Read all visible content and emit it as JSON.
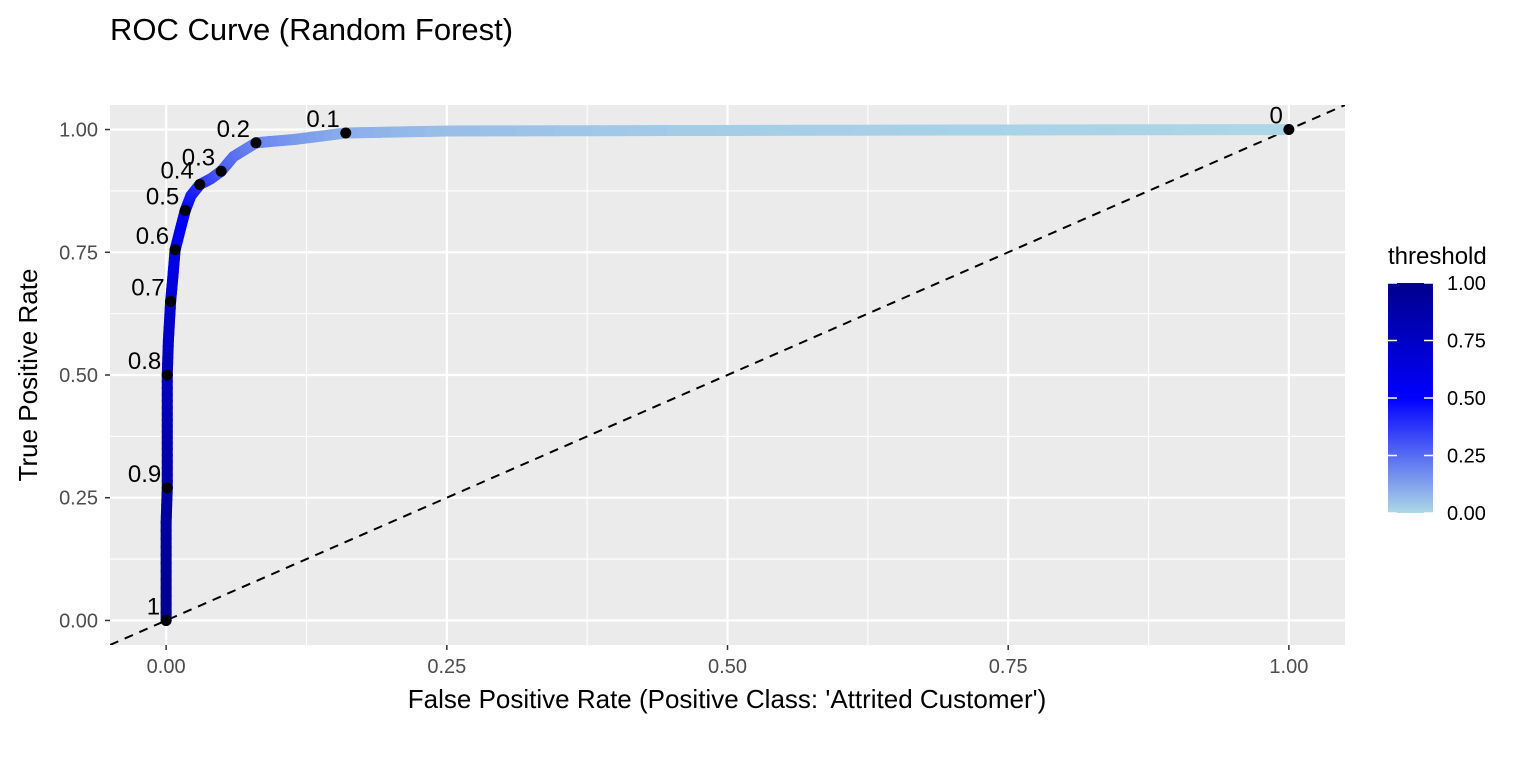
{
  "chart_data": {
    "type": "line",
    "title": "ROC Curve (Random Forest)",
    "xlabel": "False Positive Rate (Positive Class: 'Attrited Customer')",
    "ylabel": "True Positive Rate",
    "xlim": [
      -0.05,
      1.05
    ],
    "ylim": [
      -0.05,
      1.05
    ],
    "x_ticks": [
      0,
      0.25,
      0.5,
      0.75,
      1
    ],
    "x_tick_labels": [
      "0.00",
      "0.25",
      "0.50",
      "0.75",
      "1.00"
    ],
    "y_ticks": [
      0,
      0.25,
      0.5,
      0.75,
      1
    ],
    "y_tick_labels": [
      "0.00",
      "0.25",
      "0.50",
      "0.75",
      "1.00"
    ],
    "grid": true,
    "series": [
      {
        "name": "ROC",
        "color_by": "threshold",
        "points": [
          {
            "x": 0.0,
            "y": 0.0,
            "threshold": 1.0
          },
          {
            "x": 0.0,
            "y": 0.1,
            "threshold": 0.97
          },
          {
            "x": 0.0,
            "y": 0.2,
            "threshold": 0.93
          },
          {
            "x": 0.001,
            "y": 0.27,
            "threshold": 0.9
          },
          {
            "x": 0.001,
            "y": 0.35,
            "threshold": 0.87
          },
          {
            "x": 0.001,
            "y": 0.42,
            "threshold": 0.84
          },
          {
            "x": 0.001,
            "y": 0.5,
            "threshold": 0.8
          },
          {
            "x": 0.002,
            "y": 0.57,
            "threshold": 0.76
          },
          {
            "x": 0.004,
            "y": 0.65,
            "threshold": 0.7
          },
          {
            "x": 0.006,
            "y": 0.7,
            "threshold": 0.65
          },
          {
            "x": 0.008,
            "y": 0.755,
            "threshold": 0.6
          },
          {
            "x": 0.013,
            "y": 0.8,
            "threshold": 0.55
          },
          {
            "x": 0.017,
            "y": 0.835,
            "threshold": 0.5
          },
          {
            "x": 0.022,
            "y": 0.865,
            "threshold": 0.45
          },
          {
            "x": 0.03,
            "y": 0.888,
            "threshold": 0.4
          },
          {
            "x": 0.04,
            "y": 0.9,
            "threshold": 0.35
          },
          {
            "x": 0.049,
            "y": 0.915,
            "threshold": 0.3
          },
          {
            "x": 0.06,
            "y": 0.945,
            "threshold": 0.25
          },
          {
            "x": 0.08,
            "y": 0.973,
            "threshold": 0.2
          },
          {
            "x": 0.115,
            "y": 0.98,
            "threshold": 0.15
          },
          {
            "x": 0.16,
            "y": 0.993,
            "threshold": 0.1
          },
          {
            "x": 0.25,
            "y": 0.997,
            "threshold": 0.06
          },
          {
            "x": 0.45,
            "y": 0.998,
            "threshold": 0.03
          },
          {
            "x": 0.7,
            "y": 0.999,
            "threshold": 0.015
          },
          {
            "x": 1.0,
            "y": 1.0,
            "threshold": 0.0
          }
        ]
      }
    ],
    "threshold_points": [
      {
        "label": "1",
        "x": 0.0,
        "y": 0.0
      },
      {
        "label": "0.9",
        "x": 0.001,
        "y": 0.27
      },
      {
        "label": "0.8",
        "x": 0.001,
        "y": 0.5
      },
      {
        "label": "0.7",
        "x": 0.004,
        "y": 0.65
      },
      {
        "label": "0.6",
        "x": 0.008,
        "y": 0.755
      },
      {
        "label": "0.5",
        "x": 0.017,
        "y": 0.835
      },
      {
        "label": "0.4",
        "x": 0.03,
        "y": 0.888
      },
      {
        "label": "0.3",
        "x": 0.049,
        "y": 0.915
      },
      {
        "label": "0.2",
        "x": 0.08,
        "y": 0.973
      },
      {
        "label": "0.1",
        "x": 0.16,
        "y": 0.993
      },
      {
        "label": "0",
        "x": 1.0,
        "y": 1.0
      }
    ],
    "reference_line": {
      "type": "diagonal",
      "style": "dashed",
      "from": [
        -0.05,
        -0.05
      ],
      "to": [
        1.05,
        1.05
      ]
    },
    "legend": {
      "title": "threshold",
      "position": "right",
      "type": "colorbar",
      "range": [
        0,
        1
      ],
      "ticks": [
        1.0,
        0.75,
        0.5,
        0.25,
        0.0
      ],
      "tick_labels": [
        "1.00",
        "0.75",
        "0.50",
        "0.25",
        "0.00"
      ],
      "colors": {
        "low": "#add8e6",
        "mid": "#0000ff",
        "high": "#00008b"
      }
    },
    "colors": {
      "panel_bg": "#ebebeb",
      "grid": "#ffffff",
      "point": "#000000",
      "axis_text": "#4d4d4d"
    }
  }
}
